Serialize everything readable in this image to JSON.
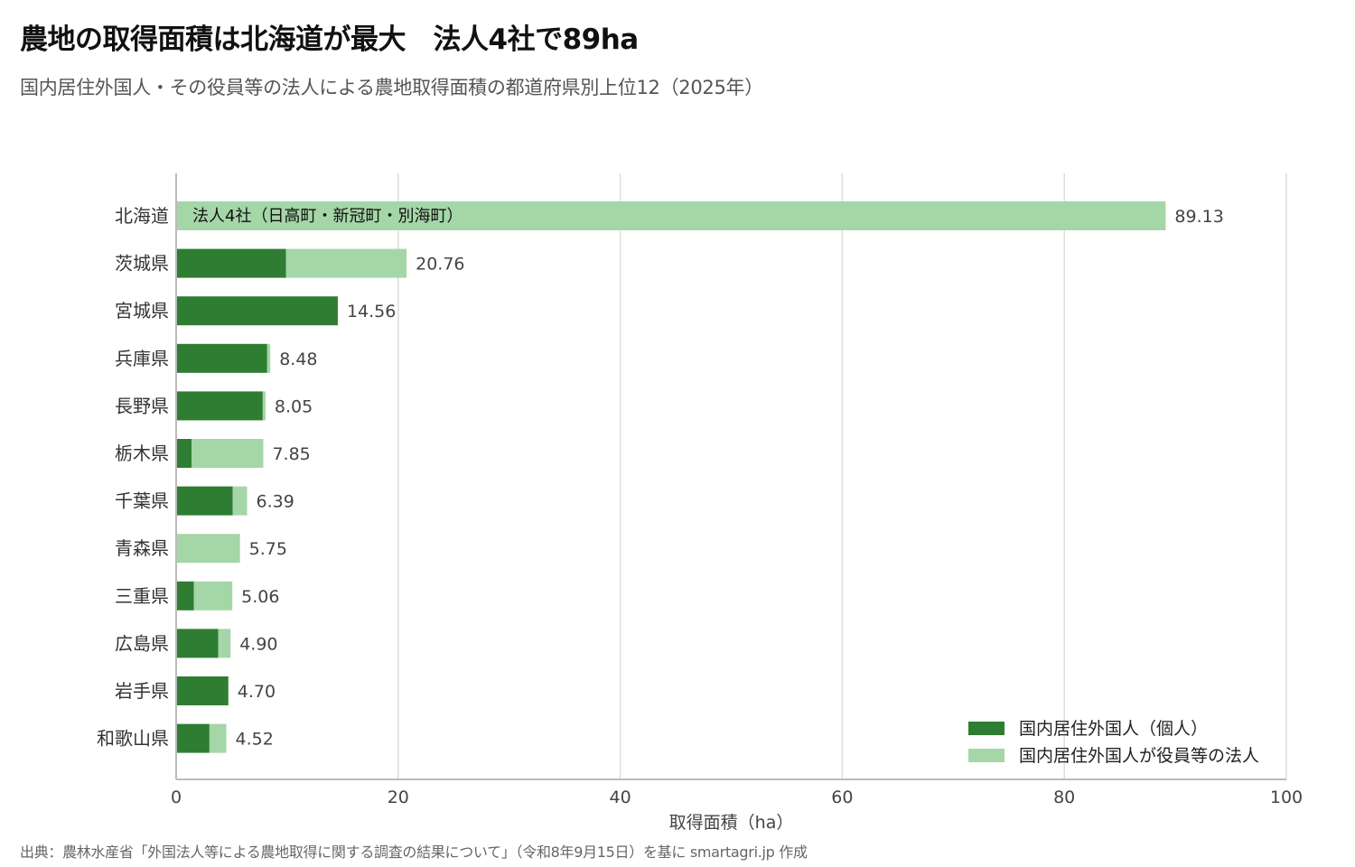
{
  "header": {
    "title": "農地の取得面積は北海道が最大　法人4社で89ha",
    "subtitle": "国内居住外国人・その役員等の法人による農地取得面積の都道府県別上位12（2025年）"
  },
  "footer": {
    "source": "出典：農林水産省「外国法人等による農地取得に関する調査の結果について」（令和8年9月15日）を基に smartagri.jp 作成"
  },
  "colors": {
    "individual": "#2e7d32",
    "corporate": "#a5d6a7",
    "grid": "#dddddd",
    "axis": "#bbbbbb"
  },
  "chart_data": {
    "type": "bar",
    "orientation": "horizontal",
    "stacked": true,
    "categories": [
      "北海道",
      "茨城県",
      "宮城県",
      "兵庫県",
      "長野県",
      "栃木県",
      "千葉県",
      "青森県",
      "三重県",
      "広島県",
      "岩手県",
      "和歌山県"
    ],
    "series": [
      {
        "name": "国内居住外国人（個人）",
        "color": "#2e7d32",
        "values": [
          0,
          9.9,
          14.56,
          8.2,
          7.8,
          1.4,
          5.1,
          0,
          1.6,
          3.8,
          4.7,
          3.0
        ]
      },
      {
        "name": "国内居住外国人が役員等の法人",
        "color": "#a5d6a7",
        "values": [
          89.13,
          10.86,
          0,
          0.28,
          0.25,
          6.45,
          1.29,
          5.75,
          3.46,
          1.1,
          0,
          1.52
        ]
      }
    ],
    "totals": [
      "89.13",
      "20.76",
      "14.56",
      "8.48",
      "8.05",
      "7.85",
      "6.39",
      "5.75",
      "5.06",
      "4.90",
      "4.70",
      "4.52"
    ],
    "annotation": {
      "category": "北海道",
      "text": "法人4社（日高町・新冠町・別海町）"
    },
    "xlabel": "取得面積（ha）",
    "ylabel": "",
    "xlim": [
      0,
      100
    ],
    "xticks": [
      0,
      20,
      40,
      60,
      80,
      100
    ],
    "grid": true,
    "legend_position": "bottom-right"
  }
}
